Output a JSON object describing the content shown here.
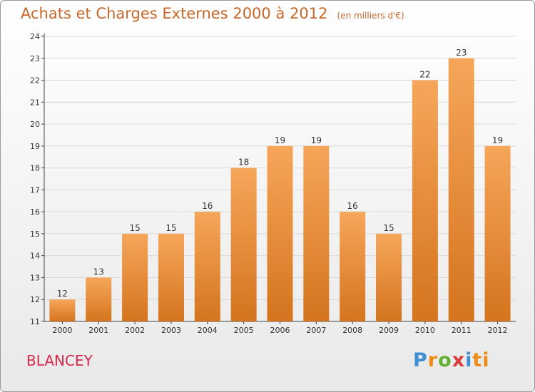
{
  "header": {
    "title": "Achats et Charges Externes 2000 à 2012",
    "unit": "(en milliers d'€)"
  },
  "footer": {
    "city": "BLANCEY",
    "logo_parts": [
      "P",
      "r",
      "o",
      "x",
      "i",
      "ti"
    ]
  },
  "colors": {
    "bar_light": "#f6a65a",
    "bar_dark": "#d4741e",
    "axis": "#444444",
    "grid": "#d8d8d8",
    "title": "#c8672a",
    "city": "#d6284b"
  },
  "chart_data": {
    "type": "bar",
    "title": "Achats et Charges Externes 2000 à 2012",
    "subtitle": "(en milliers d'€)",
    "categories": [
      "2000",
      "2001",
      "2002",
      "2003",
      "2004",
      "2005",
      "2006",
      "2007",
      "2008",
      "2009",
      "2010",
      "2011",
      "2012"
    ],
    "values": [
      12,
      13,
      15,
      15,
      16,
      18,
      19,
      19,
      16,
      15,
      22,
      23,
      19
    ],
    "ylim": [
      11,
      24
    ],
    "yticks": [
      11,
      12,
      13,
      14,
      15,
      16,
      17,
      18,
      19,
      20,
      21,
      22,
      23,
      24
    ],
    "grid": "horizontal",
    "data_labels": true,
    "legend": "none"
  }
}
